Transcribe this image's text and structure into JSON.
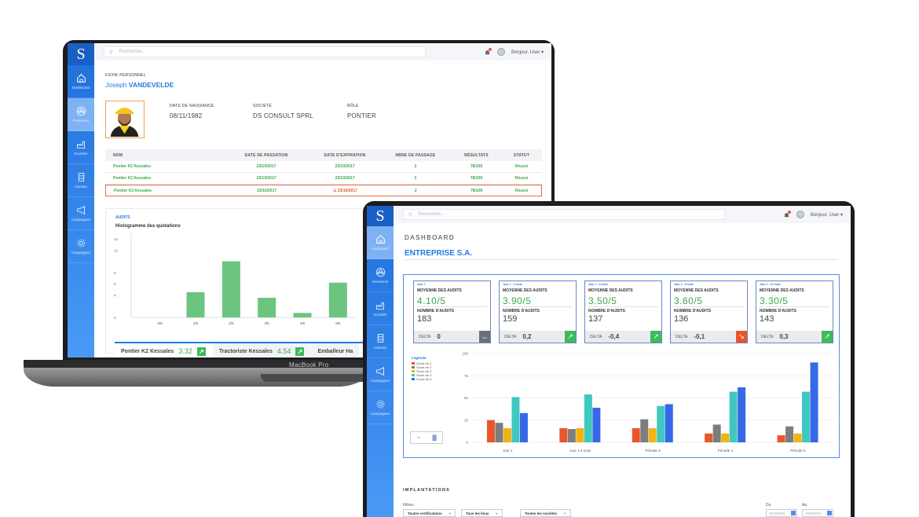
{
  "laptop": {
    "brand_label": "MacBook Pro",
    "logo": "S",
    "search_placeholder": "Recherche...",
    "greeting": "Bonjour, User ▾",
    "sidebar": [
      {
        "label": "Dashboard",
        "icon": "home-icon"
      },
      {
        "label": "Personnel",
        "icon": "people-icon"
      },
      {
        "label": "Sociétés",
        "icon": "factory-icon"
      },
      {
        "label": "Carnets",
        "icon": "notebook-icon"
      },
      {
        "label": "Campagnes",
        "icon": "megaphone-icon"
      },
      {
        "label": "Campagnes",
        "icon": "gear-icon"
      }
    ],
    "fiche_label": "FICHE PERSONNEL",
    "person_first": "Joseph ",
    "person_last": "VANDEVELDE",
    "info": [
      {
        "label": "DATE DE NAISSANCE",
        "value": "08/11/1982"
      },
      {
        "label": "SOCIÉTÉ",
        "value": "DS CONSULT SPRL"
      },
      {
        "label": "RÔLE",
        "value": "PONTIER"
      }
    ],
    "table_headers": [
      "NOM",
      "DATE DE PASSATION",
      "DATE D'EXPIRATION",
      "NBRE DE PASSAGE",
      "RÉSULTATS",
      "STATUT"
    ],
    "table_rows": [
      [
        "Pontier K2 Kessales",
        "23/10/2017",
        "23/10/2017",
        "2",
        "78/100",
        "Réussi"
      ],
      [
        "Pontier K2 Kessales",
        "23/10/2017",
        "23/10/2017",
        "2",
        "78/100",
        "Réussi"
      ],
      [
        "Pontier K2 Kessales",
        "23/10/2017",
        "23/10/2017",
        "2",
        "78/100",
        "Réussi"
      ]
    ],
    "audits_tag": "AUDITS",
    "hist_title": "Histogramme des quotations",
    "score_tabs": [
      {
        "name": "Pontier K2 Kessales",
        "score": "3.32"
      },
      {
        "name": "Tractoriste Kessales",
        "score": "4.54"
      },
      {
        "name": "Emballeur Ha",
        "score": ""
      }
    ],
    "accent": "#1e7be6",
    "success": "#3ba84a",
    "warning": "#e0542f"
  },
  "monitor": {
    "logo": "S",
    "search_placeholder": "Recherche...",
    "greeting": "Bonjour, User ▾",
    "sidebar": [
      {
        "label": "Dashboard",
        "icon": "home-icon"
      },
      {
        "label": "Personnel",
        "icon": "people-icon"
      },
      {
        "label": "Sociétés",
        "icon": "factory-icon"
      },
      {
        "label": "Carnets",
        "icon": "notebook-icon"
      },
      {
        "label": "Campagnes",
        "icon": "megaphone-icon"
      },
      {
        "label": "Campagnes",
        "icon": "gear-icon"
      }
    ],
    "dashboard_label": "DASHBOARD",
    "company": "ENTREPRISE S.A.",
    "kpis": [
      {
        "period": "Jour J",
        "avg_label": "MOYENNE DES AUDITS",
        "avg": "4.10/5",
        "count_label": "NOMBRE D'AUDITS",
        "count": "183",
        "delta_label": "DELTA",
        "delta": "0",
        "trend": "neutral",
        "trend_color": "#6b6f78"
      },
      {
        "period": "Jour J - 3 mois",
        "avg_label": "MOYENNE DES AUDITS",
        "avg": "3.90/5",
        "count_label": "NOMBRE D'AUDITS",
        "count": "159",
        "delta_label": "DELTA",
        "delta": "0,2",
        "trend": "up",
        "trend_color": "#3dba5b"
      },
      {
        "period": "Jour J - 6 mois",
        "avg_label": "MOYENNE DES AUDITS",
        "avg": "3.50/5",
        "count_label": "NOMBRE D'AUDITS",
        "count": "137",
        "delta_label": "DELTA",
        "delta": "-0,4",
        "trend": "up",
        "trend_color": "#3dba5b"
      },
      {
        "period": "Jour J - 9 mois",
        "avg_label": "MOYENNE DES AUDITS",
        "avg": "3.60/5",
        "count_label": "NOMBRE D'AUDITS",
        "count": "136",
        "delta_label": "DELTA",
        "delta": "-0,1",
        "trend": "down",
        "trend_color": "#e8572c"
      },
      {
        "period": "Jour J - 12 mois",
        "avg_label": "MOYENNE DES AUDITS",
        "avg": "3.30/5",
        "count_label": "NOMBRE D'AUDITS",
        "count": "143",
        "delta_label": "DELTA",
        "delta": "0,3",
        "trend": "up",
        "trend_color": "#3dba5b"
      }
    ],
    "legend_title": "Légende",
    "implantations": "IMPLANTATIONS",
    "filtres_label": "Filtres",
    "filters": [
      "Toutes certifications",
      "Tous les lieux",
      "Toutes les sociétés"
    ],
    "du": "Du",
    "au": "Au",
    "date_placeholder": "XX/XX/XX"
  },
  "chart_data": [
    {
      "type": "bar",
      "title": "Histogramme des quotations",
      "categories": [
        "0/5",
        "1/5",
        "2/5",
        "3/5",
        "4/5",
        "5/5"
      ],
      "values": [
        0,
        4.5,
        10,
        3.5,
        0.8,
        6.2
      ],
      "ylim": [
        0,
        14
      ],
      "yticks": [
        0,
        4,
        6,
        8,
        12,
        14
      ],
      "color": "#6cc57f"
    },
    {
      "type": "bar",
      "categories": [
        "Jour J",
        "Jour J-3 mois",
        "Période 3",
        "Période 4",
        "Période 5"
      ],
      "series": [
        {
          "name": "Score de 1",
          "color": "#e8572c",
          "values": [
            25,
            16,
            16,
            10,
            8
          ]
        },
        {
          "name": "Score de 2",
          "color": "#7d7d7d",
          "values": [
            22,
            15,
            26,
            20,
            18
          ]
        },
        {
          "name": "Score de 3",
          "color": "#f2b316",
          "values": [
            16,
            16,
            16,
            10,
            10
          ]
        },
        {
          "name": "Score de 4",
          "color": "#3fc8c0",
          "values": [
            51,
            54,
            41,
            57,
            57
          ]
        },
        {
          "name": "Score de 5",
          "color": "#3569e6",
          "values": [
            33,
            39,
            43,
            62,
            90
          ]
        }
      ],
      "ylim": [
        0,
        100
      ],
      "yticks": [
        0,
        25,
        50,
        75,
        100
      ]
    }
  ]
}
